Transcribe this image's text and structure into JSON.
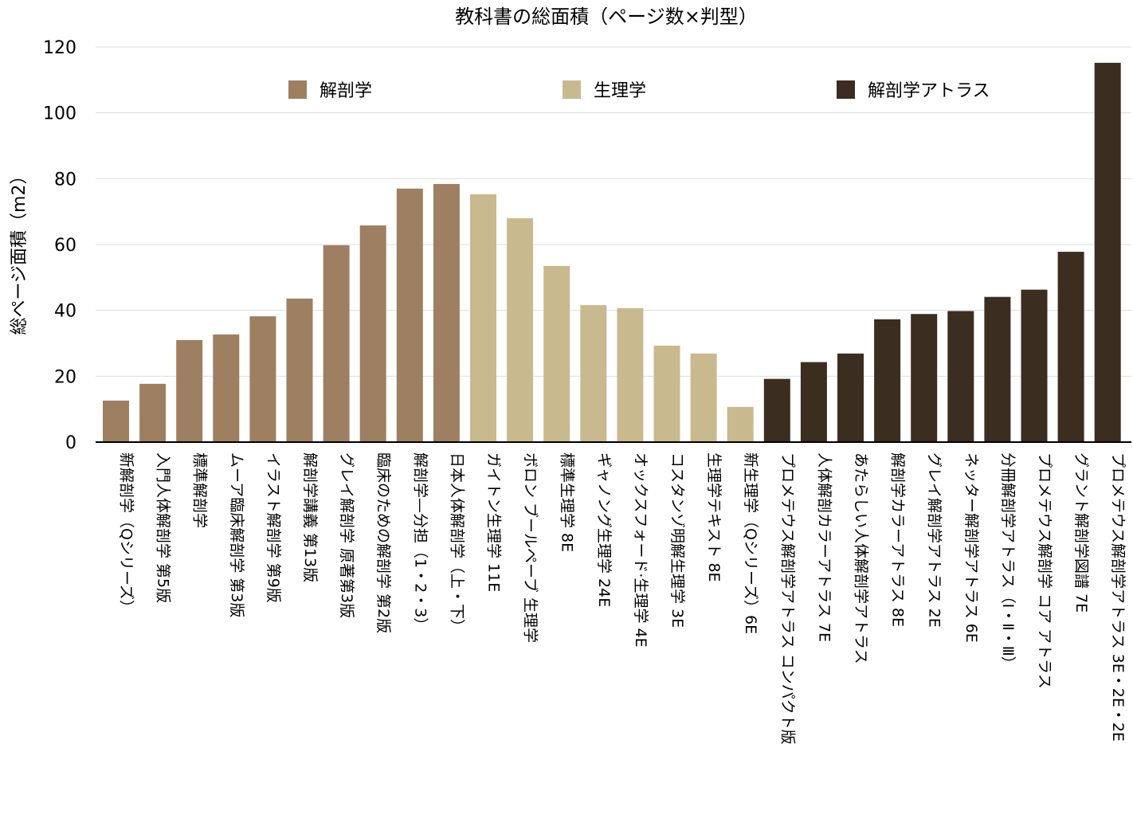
{
  "chart_data": {
    "type": "bar",
    "title": "教科書の総面積（ページ数×判型）",
    "xlabel": "",
    "ylabel": "総ページ面積（m2）",
    "ylim": [
      0,
      120
    ],
    "yticks": [
      0,
      20,
      40,
      60,
      80,
      100,
      120
    ],
    "grid": true,
    "legend_position": "top",
    "series": [
      {
        "name": "解剖学",
        "color": "#9e7f61",
        "categories": [
          "新解剖学（Qシリーズ）",
          "入門人体解剖学 第5版",
          "標準解剖学",
          "ムーア臨床解剖学 第3版",
          "イラスト解剖学 第9版",
          "解剖学講義 第13版",
          "グレイ解剖学 原著第3版",
          "臨床のための解剖学 第2版",
          "解剖学—分担（1・2・3）",
          "日本人体解剖学（上・下）"
        ],
        "values": [
          12.6,
          17.7,
          31.0,
          32.7,
          38.2,
          43.6,
          59.8,
          65.8,
          77.0,
          78.4
        ]
      },
      {
        "name": "生理学",
        "color": "#c9b98f",
        "categories": [
          "ガイトン生理学 11E",
          "ボロン ブールペーブ 生理学",
          "標準生理学 8E",
          "ギャノング生理学 24E",
          "オックスフォード·生理学 4E",
          "コスタンゾ明解生理学 3E",
          "生理学テキスト 8E",
          "新生理学（Qシリーズ）6E"
        ],
        "values": [
          75.3,
          68.0,
          53.5,
          41.6,
          40.7,
          29.3,
          26.9,
          10.7
        ]
      },
      {
        "name": "解剖学アトラス",
        "color": "#3b2d20",
        "categories": [
          "プロメテウス解剖学アトラス コンパクト版",
          "人体解剖カラーアトラス 7E",
          "あたらしい人体解剖学アトラス",
          "解剖学カラーアトラス 8E",
          "グレイ解剖学アトラス 2E",
          "ネッター解剖学アトラス 6E",
          "分冊解剖学アトラス（Ⅰ・Ⅱ・Ⅲ）",
          "プロメテウス解剖学 コア アトラス",
          "グラント解剖学図譜 7E",
          "プロメテウス解剖学アトラス 3E・2E・2E"
        ],
        "values": [
          19.2,
          24.3,
          26.9,
          37.3,
          38.9,
          39.8,
          44.1,
          46.3,
          57.8,
          115.2
        ]
      }
    ]
  }
}
